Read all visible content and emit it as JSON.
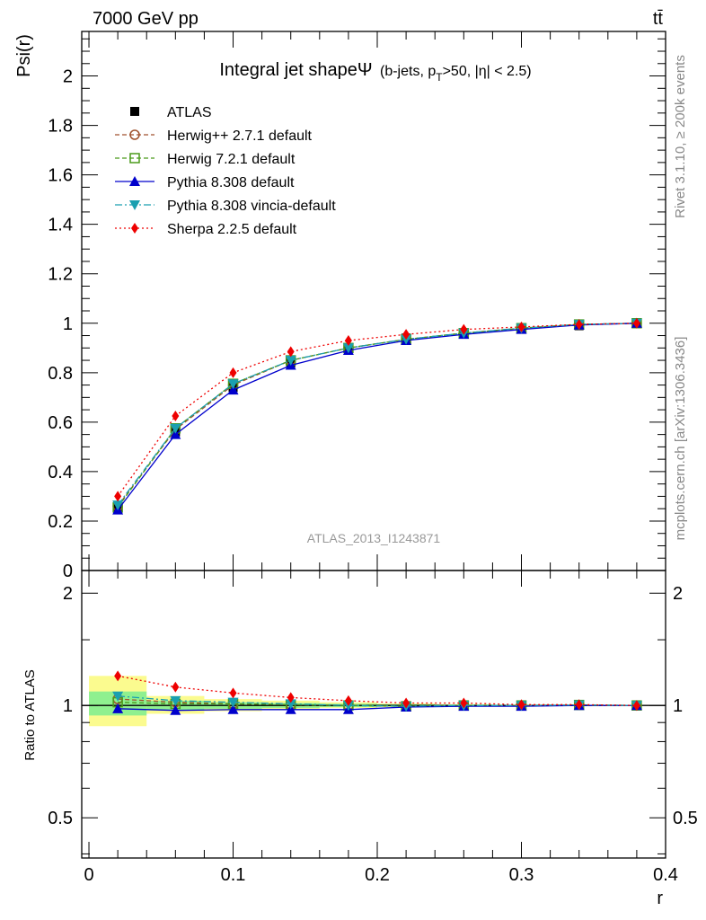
{
  "header": {
    "energy_label": "7000 GeV pp",
    "process_label": "tt̄",
    "rivet_label": "Rivet 3.1.10, ≥ 200k events",
    "mcplots_label": "mcplots.cern.ch [arXiv:1306.3436]",
    "analysis_label": "ATLAS_2013_I1243871"
  },
  "colors": {
    "ATLAS": "#000000",
    "Herwig++ 2.7.1 default": "#a0522d",
    "Herwig 7.2.1 default": "#4a9a1a",
    "Pythia 8.308 default": "#0000cc",
    "Pythia 8.308 vincia-default": "#1a9fb0",
    "Sherpa 2.2.5 default": "#ee0000",
    "band_inner": "#8ff08f",
    "band_outer": "#fbfb8f"
  },
  "chart_data": [
    {
      "type": "line",
      "title": "Integral jet shapeΨ",
      "title_extra": "(b-jets, p",
      "title_sub": "T",
      "title_tail": ">50, |η| < 2.5)",
      "ylabel": "Psi(r)",
      "xlabel": "",
      "xlim": [
        -0.005,
        0.4
      ],
      "ylim": [
        0,
        2.18
      ],
      "y_ticks": [
        "0",
        "0.2",
        "0.4",
        "0.6",
        "0.8",
        "1",
        "1.2",
        "1.4",
        "1.6",
        "1.8",
        "2"
      ],
      "x": [
        0.02,
        0.06,
        0.1,
        0.14,
        0.18,
        0.22,
        0.26,
        0.3,
        0.34,
        0.38
      ],
      "legend_position": "upper-left",
      "series": [
        {
          "name": "ATLAS",
          "marker": "square",
          "values": [
            0.25,
            0.56,
            0.74,
            0.84,
            0.9,
            0.94,
            0.96,
            0.98,
            0.99,
            1.0
          ]
        },
        {
          "name": "Herwig++ 2.7.1 default",
          "marker": "circle-open",
          "values": [
            0.26,
            0.57,
            0.75,
            0.85,
            0.9,
            0.935,
            0.96,
            0.98,
            0.995,
            1.0
          ]
        },
        {
          "name": "Herwig 7.2.1 default",
          "marker": "square-open",
          "values": [
            0.255,
            0.575,
            0.755,
            0.85,
            0.9,
            0.935,
            0.96,
            0.98,
            0.995,
            1.0
          ]
        },
        {
          "name": "Pythia 8.308 default",
          "marker": "triangle-up",
          "values": [
            0.245,
            0.55,
            0.73,
            0.83,
            0.89,
            0.93,
            0.955,
            0.975,
            0.993,
            1.0
          ]
        },
        {
          "name": "Pythia 8.308 vincia-default",
          "marker": "triangle-down",
          "values": [
            0.265,
            0.575,
            0.755,
            0.85,
            0.9,
            0.935,
            0.96,
            0.98,
            0.995,
            1.0
          ]
        },
        {
          "name": "Sherpa 2.2.5 default",
          "marker": "diamond",
          "values": [
            0.3,
            0.625,
            0.8,
            0.885,
            0.93,
            0.955,
            0.975,
            0.985,
            0.995,
            1.0
          ]
        }
      ]
    },
    {
      "type": "line",
      "title": "",
      "ylabel": "Ratio to ATLAS",
      "xlabel": "r",
      "ylim": [
        0.39,
        2.3
      ],
      "y_scale": "log",
      "y_ticks": [
        "0.5",
        "1",
        "2"
      ],
      "x_ticks": [
        "0",
        "0.1",
        "0.2",
        "0.3",
        "0.4"
      ],
      "x": [
        0.02,
        0.06,
        0.1,
        0.14,
        0.18,
        0.22,
        0.26,
        0.3,
        0.34,
        0.38
      ],
      "bin_edges": [
        0.0,
        0.04,
        0.08,
        0.12,
        0.16,
        0.2,
        0.24,
        0.28,
        0.32,
        0.36,
        0.4
      ],
      "band_inner": [
        [
          0.94,
          1.09
        ],
        [
          0.97,
          1.03
        ],
        [
          0.98,
          1.02
        ],
        [
          0.985,
          1.015
        ],
        [
          0.99,
          1.01
        ],
        [
          0.993,
          1.007
        ],
        [
          0.995,
          1.005
        ],
        [
          0.997,
          1.003
        ],
        [
          0.998,
          1.002
        ],
        [
          0.999,
          1.001
        ]
      ],
      "band_outer": [
        [
          0.88,
          1.2
        ],
        [
          0.95,
          1.06
        ],
        [
          0.965,
          1.04
        ],
        [
          0.975,
          1.03
        ],
        [
          0.985,
          1.02
        ],
        [
          0.99,
          1.012
        ],
        [
          0.993,
          1.008
        ],
        [
          0.995,
          1.005
        ],
        [
          0.997,
          1.003
        ],
        [
          0.999,
          1.001
        ]
      ],
      "series": [
        {
          "name": "Herwig++ 2.7.1 default",
          "values": [
            1.04,
            1.02,
            1.01,
            1.005,
            1.0,
            0.995,
            1.0,
            1.0,
            1.003,
            1.0
          ]
        },
        {
          "name": "Herwig 7.2.1 default",
          "values": [
            1.02,
            1.01,
            1.01,
            1.005,
            1.0,
            0.995,
            1.0,
            1.0,
            1.003,
            1.0
          ]
        },
        {
          "name": "Pythia 8.308 default",
          "values": [
            0.98,
            0.97,
            0.975,
            0.975,
            0.975,
            0.99,
            0.995,
            0.995,
            1.0,
            1.0
          ]
        },
        {
          "name": "Pythia 8.308 vincia-default",
          "values": [
            1.06,
            1.03,
            1.02,
            1.01,
            1.0,
            0.995,
            1.0,
            1.0,
            1.003,
            1.0
          ]
        },
        {
          "name": "Sherpa 2.2.5 default",
          "values": [
            1.2,
            1.12,
            1.08,
            1.05,
            1.03,
            1.015,
            1.015,
            1.005,
            1.005,
            1.0
          ]
        }
      ]
    }
  ]
}
